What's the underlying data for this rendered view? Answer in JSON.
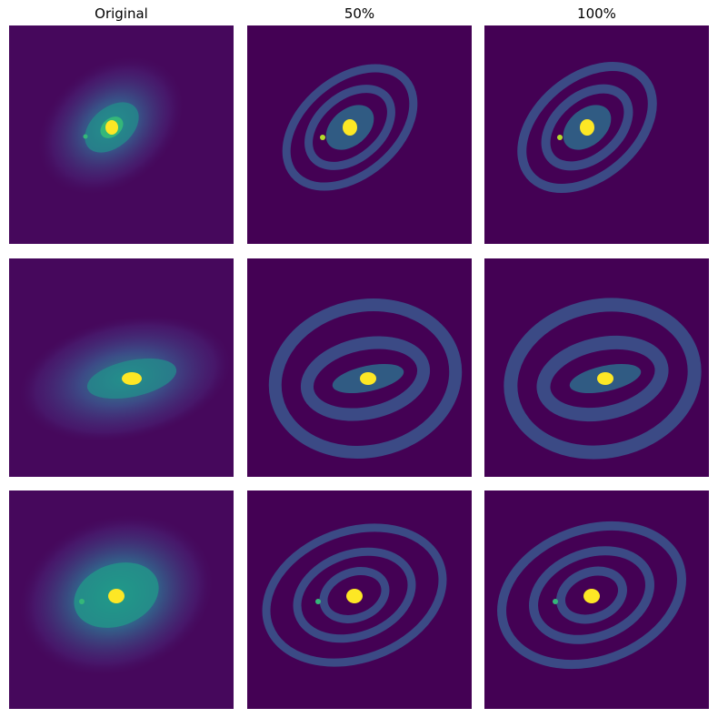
{
  "columns": [
    {
      "title": "Original"
    },
    {
      "title": "50%"
    },
    {
      "title": "100%"
    }
  ],
  "rows": [
    {
      "panels": [
        {
          "image": "galaxy-1-original",
          "variant": "original"
        },
        {
          "image": "galaxy-1-50-percent",
          "variant": "masked"
        },
        {
          "image": "galaxy-1-100-percent",
          "variant": "masked"
        }
      ]
    },
    {
      "panels": [
        {
          "image": "galaxy-2-original",
          "variant": "original"
        },
        {
          "image": "galaxy-2-50-percent",
          "variant": "masked"
        },
        {
          "image": "galaxy-2-100-percent",
          "variant": "masked"
        }
      ]
    },
    {
      "panels": [
        {
          "image": "galaxy-3-original",
          "variant": "original"
        },
        {
          "image": "galaxy-3-50-percent",
          "variant": "masked"
        },
        {
          "image": "galaxy-3-100-percent",
          "variant": "masked"
        }
      ]
    }
  ],
  "colors": {
    "background": "#440154",
    "dim": "#46327e",
    "mid": "#31688e",
    "bright": "#21918c",
    "glow": "#35b779",
    "core": "#fde725"
  }
}
